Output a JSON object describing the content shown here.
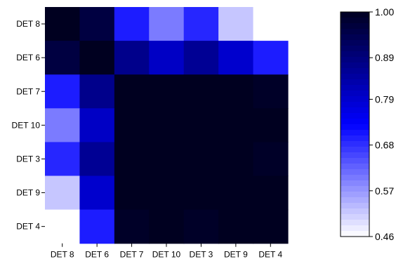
{
  "chart_data": {
    "type": "heatmap",
    "row_labels": [
      "DET 8",
      "DET 6",
      "DET 7",
      "DET 10",
      "DET 3",
      "DET 9",
      "DET 4"
    ],
    "col_labels": [
      "DET 8",
      "DET 6",
      "DET 7",
      "DET 10",
      "DET 3",
      "DET 9",
      "DET 4"
    ],
    "values": [
      [
        1.0,
        0.96,
        0.7,
        0.6,
        0.69,
        0.52,
        0.46
      ],
      [
        0.96,
        1.0,
        0.87,
        0.8,
        0.86,
        0.79,
        0.7
      ],
      [
        0.7,
        0.87,
        1.0,
        1.0,
        1.0,
        1.0,
        0.99
      ],
      [
        0.6,
        0.8,
        1.0,
        1.0,
        1.0,
        1.0,
        1.0
      ],
      [
        0.69,
        0.86,
        1.0,
        1.0,
        1.0,
        1.0,
        0.99
      ],
      [
        0.52,
        0.79,
        1.0,
        1.0,
        1.0,
        1.0,
        1.0
      ],
      [
        0.46,
        0.7,
        0.99,
        1.0,
        0.99,
        1.0,
        1.0
      ]
    ],
    "colorscale": {
      "min": 0.46,
      "max": 1.0,
      "ticks": [
        "1.00",
        "0.89",
        "0.79",
        "0.68",
        "0.57",
        "0.46"
      ],
      "tick_values": [
        1.0,
        0.89,
        0.79,
        0.68,
        0.57,
        0.46
      ],
      "colors": [
        "#ffffff",
        "#0000ff",
        "#000020"
      ]
    },
    "xlabel": "",
    "ylabel": "",
    "title": ""
  }
}
